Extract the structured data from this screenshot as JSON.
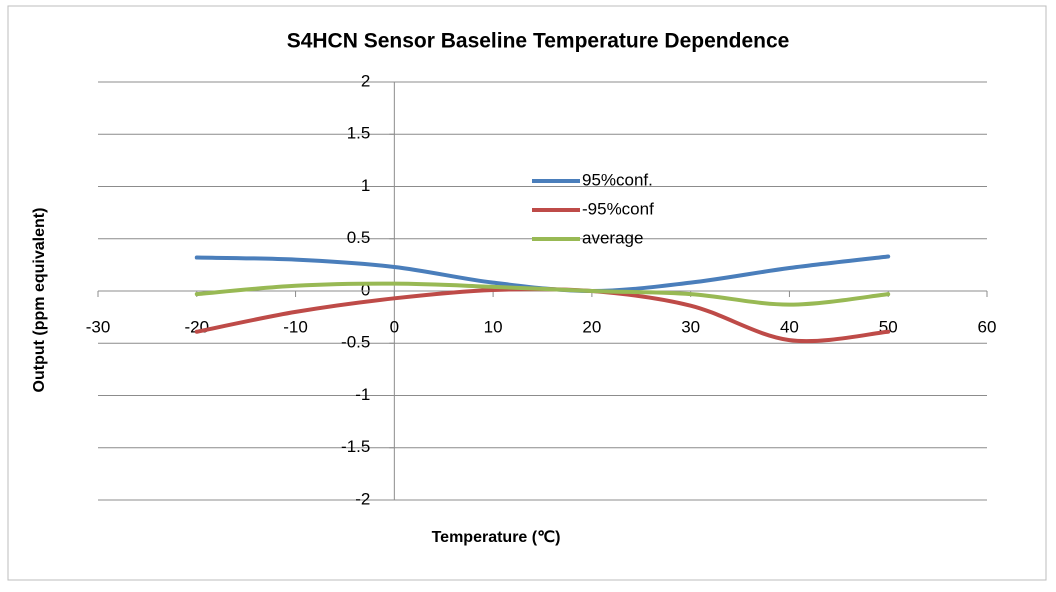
{
  "chart_data": {
    "type": "line",
    "title": "S4HCN Sensor Baseline Temperature Dependence",
    "x_label": "Temperature (℃)",
    "y_label": "Output (ppm equivalent)",
    "x": [
      -20,
      -10,
      0,
      10,
      20,
      30,
      40,
      50
    ],
    "series": [
      {
        "name": "95%conf.",
        "color": "#4a7ebb",
        "values": [
          0.32,
          0.3,
          0.23,
          0.08,
          0,
          0.08,
          0.22,
          0.33
        ]
      },
      {
        "name": "-95%conf",
        "color": "#be4b48",
        "values": [
          -0.39,
          -0.2,
          -0.07,
          0.01,
          0,
          -0.14,
          -0.47,
          -0.39
        ]
      },
      {
        "name": "average",
        "color": "#98b954",
        "values": [
          -0.03,
          0.05,
          0.07,
          0.04,
          0,
          -0.03,
          -0.13,
          -0.03
        ]
      }
    ],
    "xlim": [
      -30,
      60
    ],
    "xticks": [
      -30,
      -20,
      -10,
      0,
      10,
      20,
      30,
      40,
      50,
      60
    ],
    "ylim": [
      -2,
      2
    ],
    "yticks": [
      -2,
      -1.5,
      -1,
      -0.5,
      0,
      0.5,
      1,
      1.5,
      2
    ],
    "grid": true,
    "smooth": true
  }
}
